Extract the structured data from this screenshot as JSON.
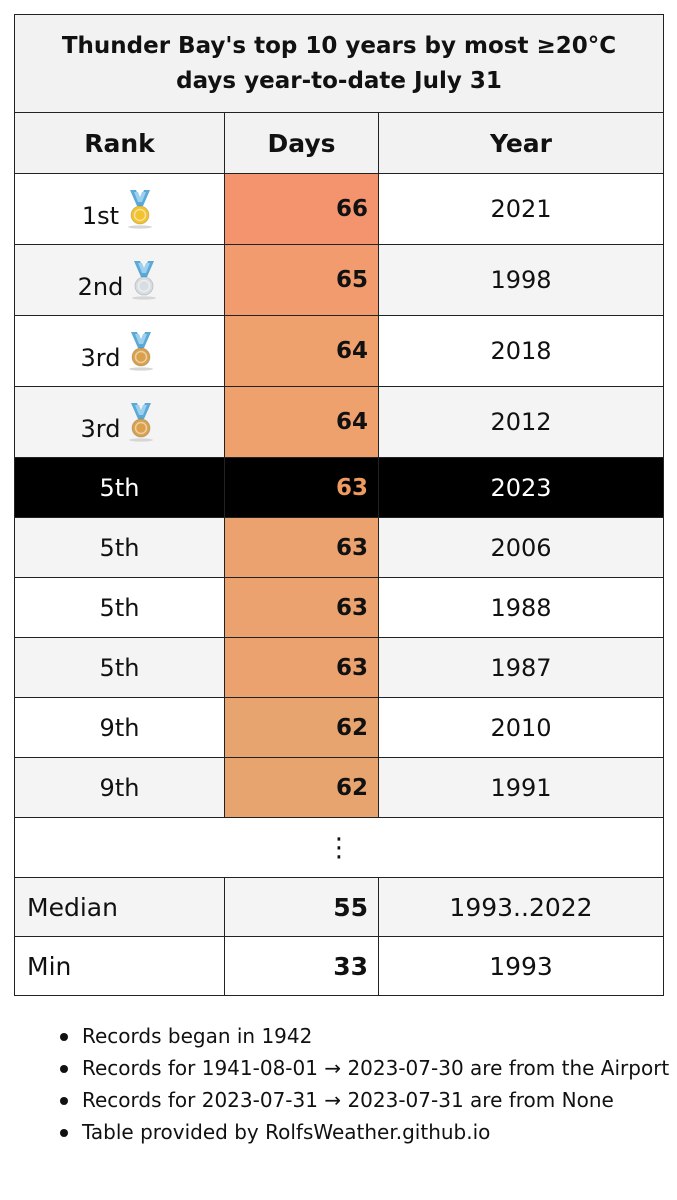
{
  "chart_data": {
    "type": "table",
    "title_line1": "Thunder Bay's top 10 years by most ≥20°C",
    "title_line2": "days year-to-date July 31",
    "columns": [
      "Rank",
      "Days",
      "Year"
    ],
    "rows": [
      {
        "rank": "1st",
        "days": 66,
        "year": "2021",
        "medal": "gold-medal-icon",
        "color": "#f4946e"
      },
      {
        "rank": "2nd",
        "days": 65,
        "year": "1998",
        "medal": "silver-medal-icon",
        "color": "#f19b6e"
      },
      {
        "rank": "3rd",
        "days": 64,
        "year": "2018",
        "medal": "bronze-medal-icon",
        "color": "#eea06d"
      },
      {
        "rank": "3rd",
        "days": 64,
        "year": "2012",
        "medal": "bronze-medal-icon",
        "color": "#eea06d"
      },
      {
        "rank": "5th",
        "days": 63,
        "year": "2023",
        "medal": "",
        "color": "#ef9a5f",
        "highlight": true
      },
      {
        "rank": "5th",
        "days": 63,
        "year": "2006",
        "medal": "",
        "color": "#eba26e"
      },
      {
        "rank": "5th",
        "days": 63,
        "year": "1988",
        "medal": "",
        "color": "#eba26e"
      },
      {
        "rank": "5th",
        "days": 63,
        "year": "1987",
        "medal": "",
        "color": "#eba26e"
      },
      {
        "rank": "9th",
        "days": 62,
        "year": "2010",
        "medal": "",
        "color": "#e8a46e"
      },
      {
        "rank": "9th",
        "days": 62,
        "year": "1991",
        "medal": "",
        "color": "#e8a46e"
      }
    ],
    "ellipsis": "⋮",
    "summary": [
      {
        "label": "Median",
        "days": 55,
        "year": "1993..2022"
      },
      {
        "label": "Min",
        "days": 33,
        "year": "1993"
      }
    ]
  },
  "notes": [
    "Records began in 1942",
    "Records for 1941-08-01 → 2023-07-30 are from the Airport",
    "Records for 2023-07-31 → 2023-07-31 are from None",
    "Table provided by RolfsWeather.github.io"
  ],
  "medal_colors": {
    "gold-medal-icon": "#f2c230",
    "silver-medal-icon": "#d8dde2",
    "bronze-medal-icon": "#d9a14d",
    "ribbon": "#5aa9d6"
  }
}
